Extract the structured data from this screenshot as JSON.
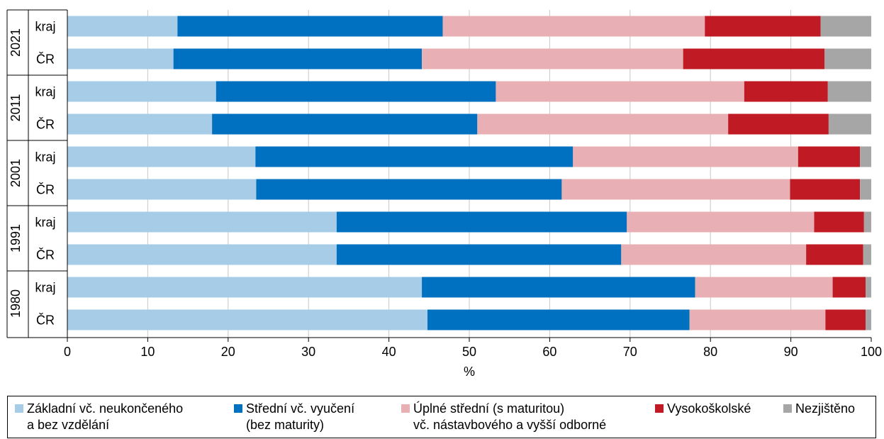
{
  "chart_data": {
    "type": "bar",
    "orientation": "horizontal",
    "stacked": true,
    "xlabel": "%",
    "xlim": [
      0,
      100
    ],
    "xticks": [
      0,
      10,
      20,
      30,
      40,
      50,
      60,
      70,
      80,
      90,
      100
    ],
    "grid": "vertical",
    "groups": [
      {
        "year": "2021",
        "rows": [
          {
            "label": "kraj",
            "values": [
              13.7,
              33.0,
              32.6,
              14.4,
              6.3
            ]
          },
          {
            "label": "ČR",
            "values": [
              13.2,
              30.9,
              32.5,
              17.6,
              5.8
            ]
          }
        ]
      },
      {
        "year": "2011",
        "rows": [
          {
            "label": "kraj",
            "values": [
              18.5,
              34.8,
              30.9,
              10.4,
              5.4
            ]
          },
          {
            "label": "ČR",
            "values": [
              18.0,
              33.0,
              31.2,
              12.5,
              5.3
            ]
          }
        ]
      },
      {
        "year": "2001",
        "rows": [
          {
            "label": "kraj",
            "values": [
              23.4,
              39.5,
              28.0,
              7.7,
              1.4
            ]
          },
          {
            "label": "ČR",
            "values": [
              23.5,
              38.0,
              28.4,
              8.7,
              1.4
            ]
          }
        ]
      },
      {
        "year": "1991",
        "rows": [
          {
            "label": "kraj",
            "values": [
              33.5,
              36.1,
              23.3,
              6.2,
              0.9
            ]
          },
          {
            "label": "ČR",
            "values": [
              33.5,
              35.4,
              23.0,
              7.1,
              1.0
            ]
          }
        ]
      },
      {
        "year": "1980",
        "rows": [
          {
            "label": "kraj",
            "values": [
              44.1,
              34.0,
              17.1,
              4.1,
              0.7
            ]
          },
          {
            "label": "ČR",
            "values": [
              44.8,
              32.6,
              16.9,
              5.0,
              0.7
            ]
          }
        ]
      }
    ],
    "series": [
      {
        "name": "Základní vč. neukončeného\na bez vzdělání",
        "color": "#a7cce8"
      },
      {
        "name": "Střední vč. vyučení\n(bez maturity)",
        "color": "#0070c0"
      },
      {
        "name": "Úplné střední (s maturitou)\nvč. nástavbového a vyšší odborné",
        "color": "#e8b0b4"
      },
      {
        "name": "Vysokoškolské",
        "color": "#c01b24"
      },
      {
        "name": "Nezjištěno",
        "color": "#a6a6a6"
      }
    ],
    "legend_position": "bottom"
  }
}
